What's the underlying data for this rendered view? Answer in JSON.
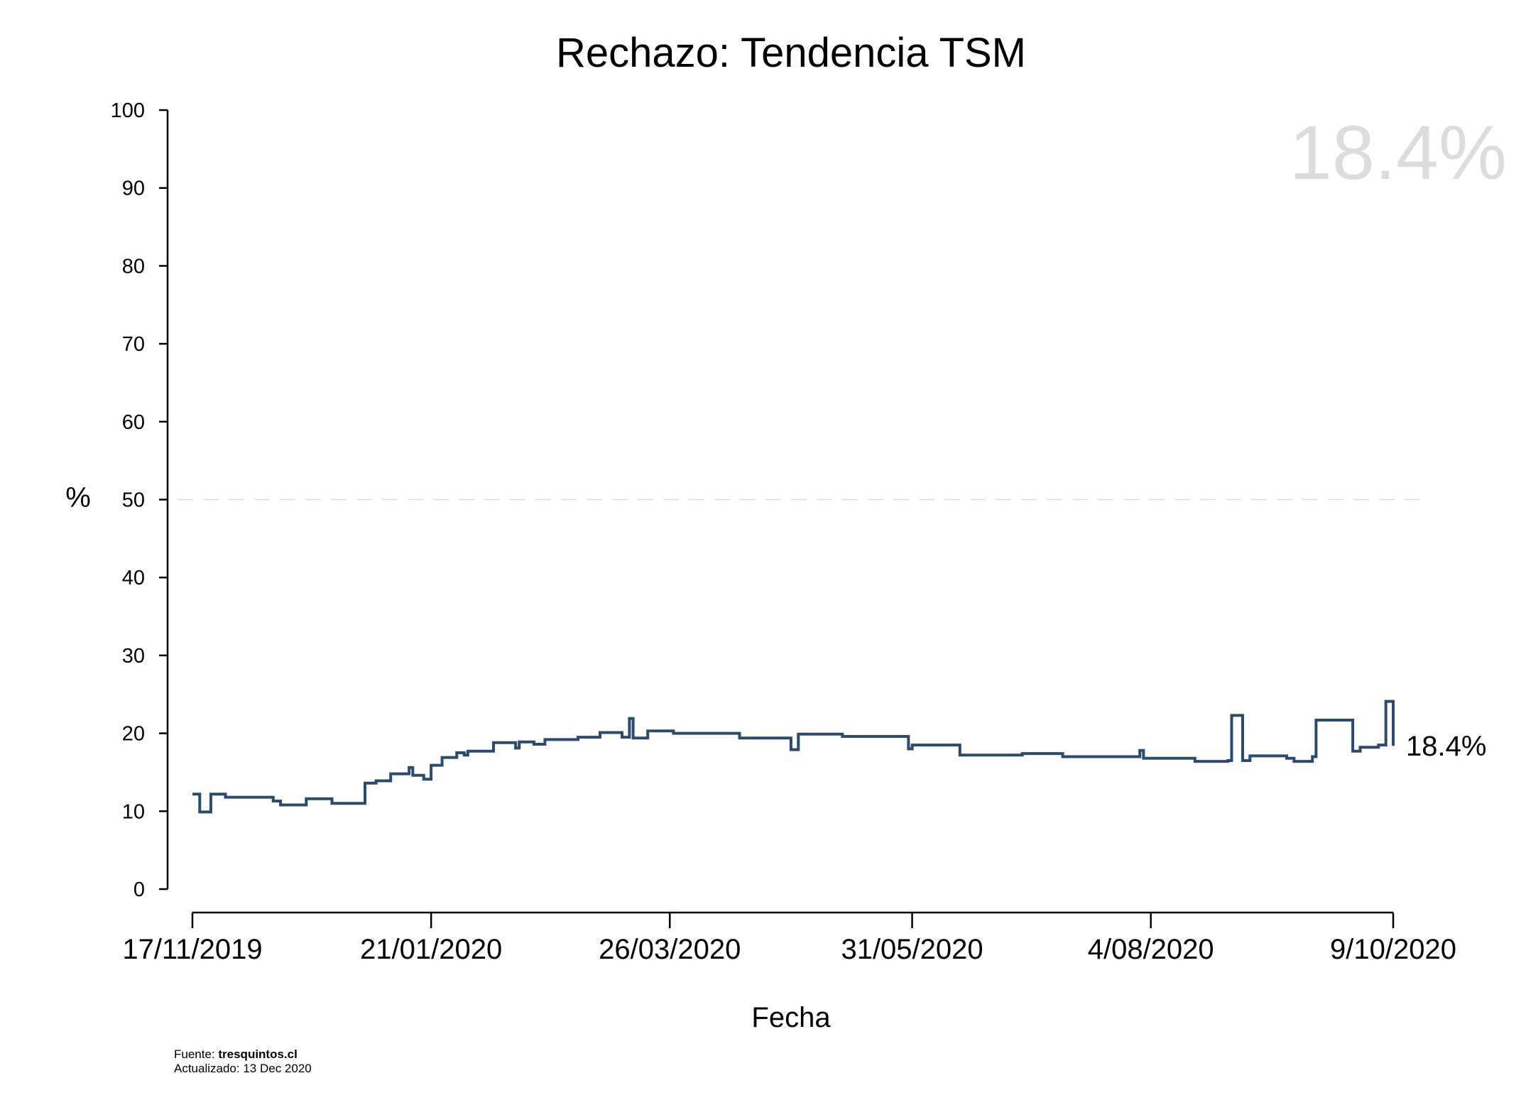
{
  "chart_data": {
    "type": "line",
    "step": true,
    "title": "Rechazo: Tendencia TSM",
    "xlabel": "Fecha",
    "ylabel": "%",
    "ylim": [
      0,
      100
    ],
    "yticks": [
      0,
      10,
      20,
      30,
      40,
      50,
      60,
      70,
      80,
      90,
      100
    ],
    "xlim": [
      "2019-11-17",
      "2020-10-09"
    ],
    "xticks": [
      {
        "date": "2019-11-17",
        "label": "17/11/2019"
      },
      {
        "date": "2020-01-21",
        "label": "21/01/2020"
      },
      {
        "date": "2020-03-26",
        "label": "26/03/2020"
      },
      {
        "date": "2020-05-31",
        "label": "31/05/2020"
      },
      {
        "date": "2020-08-04",
        "label": "4/08/2020"
      },
      {
        "date": "2020-10-09",
        "label": "9/10/2020"
      }
    ],
    "reference_line": {
      "y": 50,
      "style": "dashed"
    },
    "grid": false,
    "series": [
      {
        "color": "#2b4a6f",
        "points": [
          [
            "2019-11-17",
            12.2
          ],
          [
            "2019-11-19",
            9.9
          ],
          [
            "2019-11-22",
            12.2
          ],
          [
            "2019-11-26",
            11.8
          ],
          [
            "2019-12-09",
            11.3
          ],
          [
            "2019-12-11",
            10.8
          ],
          [
            "2019-12-18",
            11.6
          ],
          [
            "2019-12-25",
            11.0
          ],
          [
            "2020-01-03",
            13.6
          ],
          [
            "2020-01-06",
            13.9
          ],
          [
            "2020-01-10",
            14.8
          ],
          [
            "2020-01-15",
            15.6
          ],
          [
            "2020-01-16",
            14.6
          ],
          [
            "2020-01-19",
            14.1
          ],
          [
            "2020-01-21",
            15.9
          ],
          [
            "2020-01-24",
            16.9
          ],
          [
            "2020-01-28",
            17.5
          ],
          [
            "2020-01-30",
            17.2
          ],
          [
            "2020-01-31",
            17.7
          ],
          [
            "2020-02-07",
            18.8
          ],
          [
            "2020-02-13",
            18.1
          ],
          [
            "2020-02-14",
            18.9
          ],
          [
            "2020-02-18",
            18.6
          ],
          [
            "2020-02-21",
            19.2
          ],
          [
            "2020-03-01",
            19.5
          ],
          [
            "2020-03-07",
            20.1
          ],
          [
            "2020-03-13",
            19.5
          ],
          [
            "2020-03-15",
            21.9
          ],
          [
            "2020-03-16",
            19.4
          ],
          [
            "2020-03-20",
            20.3
          ],
          [
            "2020-03-27",
            20.0
          ],
          [
            "2020-04-14",
            19.4
          ],
          [
            "2020-04-28",
            17.9
          ],
          [
            "2020-04-30",
            19.9
          ],
          [
            "2020-05-12",
            19.6
          ],
          [
            "2020-05-30",
            18.0
          ],
          [
            "2020-05-31",
            18.5
          ],
          [
            "2020-06-13",
            17.2
          ],
          [
            "2020-06-30",
            17.4
          ],
          [
            "2020-07-11",
            17.0
          ],
          [
            "2020-08-01",
            17.8
          ],
          [
            "2020-08-02",
            16.8
          ],
          [
            "2020-08-16",
            16.4
          ],
          [
            "2020-08-25",
            16.5
          ],
          [
            "2020-08-26",
            22.3
          ],
          [
            "2020-08-29",
            16.5
          ],
          [
            "2020-08-31",
            17.1
          ],
          [
            "2020-09-10",
            16.8
          ],
          [
            "2020-09-12",
            16.4
          ],
          [
            "2020-09-17",
            17.0
          ],
          [
            "2020-09-18",
            21.7
          ],
          [
            "2020-09-28",
            17.7
          ],
          [
            "2020-09-30",
            18.2
          ],
          [
            "2020-10-05",
            18.5
          ],
          [
            "2020-10-07",
            24.1
          ],
          [
            "2020-10-09",
            18.4
          ]
        ]
      }
    ],
    "annotations": {
      "latest_value_label": "18.4%",
      "watermark_value": "18.4%"
    }
  },
  "footer": {
    "source_prefix": "Fuente: ",
    "source_name": "tresquintos.cl",
    "updated": "Actualizado: 13 Dec 2020"
  }
}
